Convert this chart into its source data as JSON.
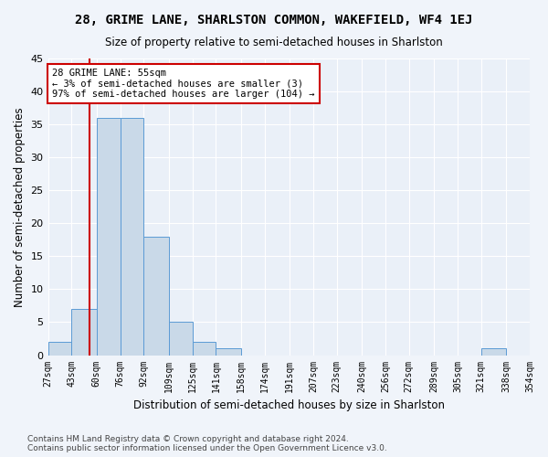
{
  "title": "28, GRIME LANE, SHARLSTON COMMON, WAKEFIELD, WF4 1EJ",
  "subtitle": "Size of property relative to semi-detached houses in Sharlston",
  "xlabel": "Distribution of semi-detached houses by size in Sharlston",
  "ylabel": "Number of semi-detached properties",
  "bar_color": "#c9d9e8",
  "bar_edge_color": "#5b9bd5",
  "annotation_line_color": "#cc0000",
  "annotation_box_color": "#cc0000",
  "annotation_text": "28 GRIME LANE: 55sqm\n← 3% of semi-detached houses are smaller (3)\n97% of semi-detached houses are larger (104) →",
  "property_size": 55,
  "bins": [
    27,
    43,
    60,
    76,
    92,
    109,
    125,
    141,
    158,
    174,
    191,
    207,
    223,
    240,
    256,
    272,
    289,
    305,
    321,
    338,
    354
  ],
  "bin_labels": [
    "27sqm",
    "43sqm",
    "60sqm",
    "76sqm",
    "92sqm",
    "109sqm",
    "125sqm",
    "141sqm",
    "158sqm",
    "174sqm",
    "191sqm",
    "207sqm",
    "223sqm",
    "240sqm",
    "256sqm",
    "272sqm",
    "289sqm",
    "305sqm",
    "321sqm",
    "338sqm",
    "354sqm"
  ],
  "counts": [
    2,
    7,
    36,
    36,
    18,
    5,
    2,
    1,
    0,
    0,
    0,
    0,
    0,
    0,
    0,
    0,
    0,
    0,
    1,
    0
  ],
  "ylim": [
    0,
    45
  ],
  "yticks": [
    0,
    5,
    10,
    15,
    20,
    25,
    30,
    35,
    40,
    45
  ],
  "footer": "Contains HM Land Registry data © Crown copyright and database right 2024.\nContains public sector information licensed under the Open Government Licence v3.0.",
  "bg_color": "#eaf0f8",
  "grid_color": "#ffffff",
  "fig_bg_color": "#f0f4fa"
}
